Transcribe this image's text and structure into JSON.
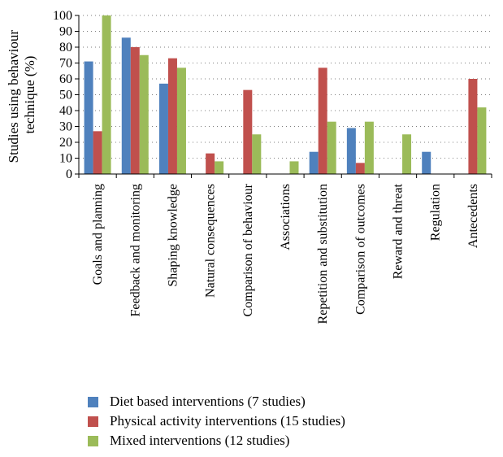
{
  "chart_data": {
    "type": "bar",
    "ylabel": "Studies using behaviour technique (%)",
    "ylabel_lines": [
      "Studies using behaviour",
      "technique (%)"
    ],
    "xlabel": "",
    "ylim": [
      0,
      100
    ],
    "yticks": [
      0,
      10,
      20,
      30,
      40,
      50,
      60,
      70,
      80,
      90,
      100
    ],
    "grid": "dotted horizontal",
    "legend_position": "bottom",
    "categories": [
      "Goals and planning",
      "Feedback and monitoring",
      "Shaping knowledge",
      "Natural consequences",
      "Comparison of behaviour",
      "Associations",
      "Repetition and substitution",
      "Comparison of outcomes",
      "Reward and threat",
      "Regulation",
      "Antecedents"
    ],
    "series": [
      {
        "name": "Diet based interventions (7 studies)",
        "color": "#4f81bd",
        "values": [
          71,
          86,
          57,
          0,
          0,
          0,
          14,
          29,
          0,
          14,
          0
        ]
      },
      {
        "name": "Physical activity interventions (15 studies)",
        "color": "#c0504d",
        "values": [
          27,
          80,
          73,
          13,
          53,
          0,
          67,
          7,
          0,
          0,
          60
        ]
      },
      {
        "name": "Mixed interventions (12 studies)",
        "color": "#9bbb59",
        "values": [
          100,
          75,
          67,
          8,
          25,
          8,
          33,
          33,
          25,
          0,
          42
        ]
      }
    ]
  }
}
